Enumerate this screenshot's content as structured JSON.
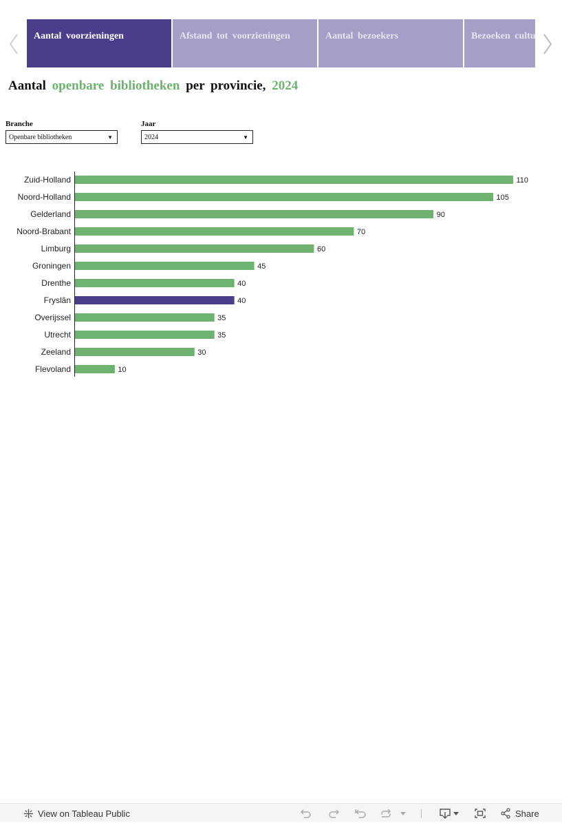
{
  "colors": {
    "active_tab": "#4c3d8c",
    "inactive_tab": "#a59ec6",
    "bar": "#6db26e",
    "bar_highlight": "#4c3d8c"
  },
  "tabs": [
    {
      "label": "Aantal voorzieningen",
      "active": true
    },
    {
      "label": "Afstand tot voorzieningen",
      "active": false
    },
    {
      "label": "Aantal bezoekers",
      "active": false
    },
    {
      "label": "Bezoeken culturele activiteiten",
      "active": false
    }
  ],
  "title": {
    "part1": "Aantal",
    "highlight": "openbare bibliotheken",
    "part2": "per provincie,",
    "year": "2024"
  },
  "filters": {
    "branche": {
      "label": "Branche",
      "value": "Openbare bibliotheken"
    },
    "jaar": {
      "label": "Jaar",
      "value": "2024"
    }
  },
  "chart_data": {
    "type": "bar",
    "orientation": "horizontal",
    "title": "Aantal openbare bibliotheken per provincie, 2024",
    "xlabel": "",
    "ylabel": "",
    "xlim": [
      0,
      110
    ],
    "categories": [
      "Zuid-Holland",
      "Noord-Holland",
      "Gelderland",
      "Noord-Brabant",
      "Limburg",
      "Groningen",
      "Drenthe",
      "Fryslân",
      "Overijssel",
      "Utrecht",
      "Zeeland",
      "Flevoland"
    ],
    "values": [
      110,
      105,
      90,
      70,
      60,
      45,
      40,
      40,
      35,
      35,
      30,
      10
    ],
    "highlighted_category": "Fryslân"
  },
  "footer": {
    "view_label": "View on Tableau Public",
    "share_label": "Share"
  }
}
